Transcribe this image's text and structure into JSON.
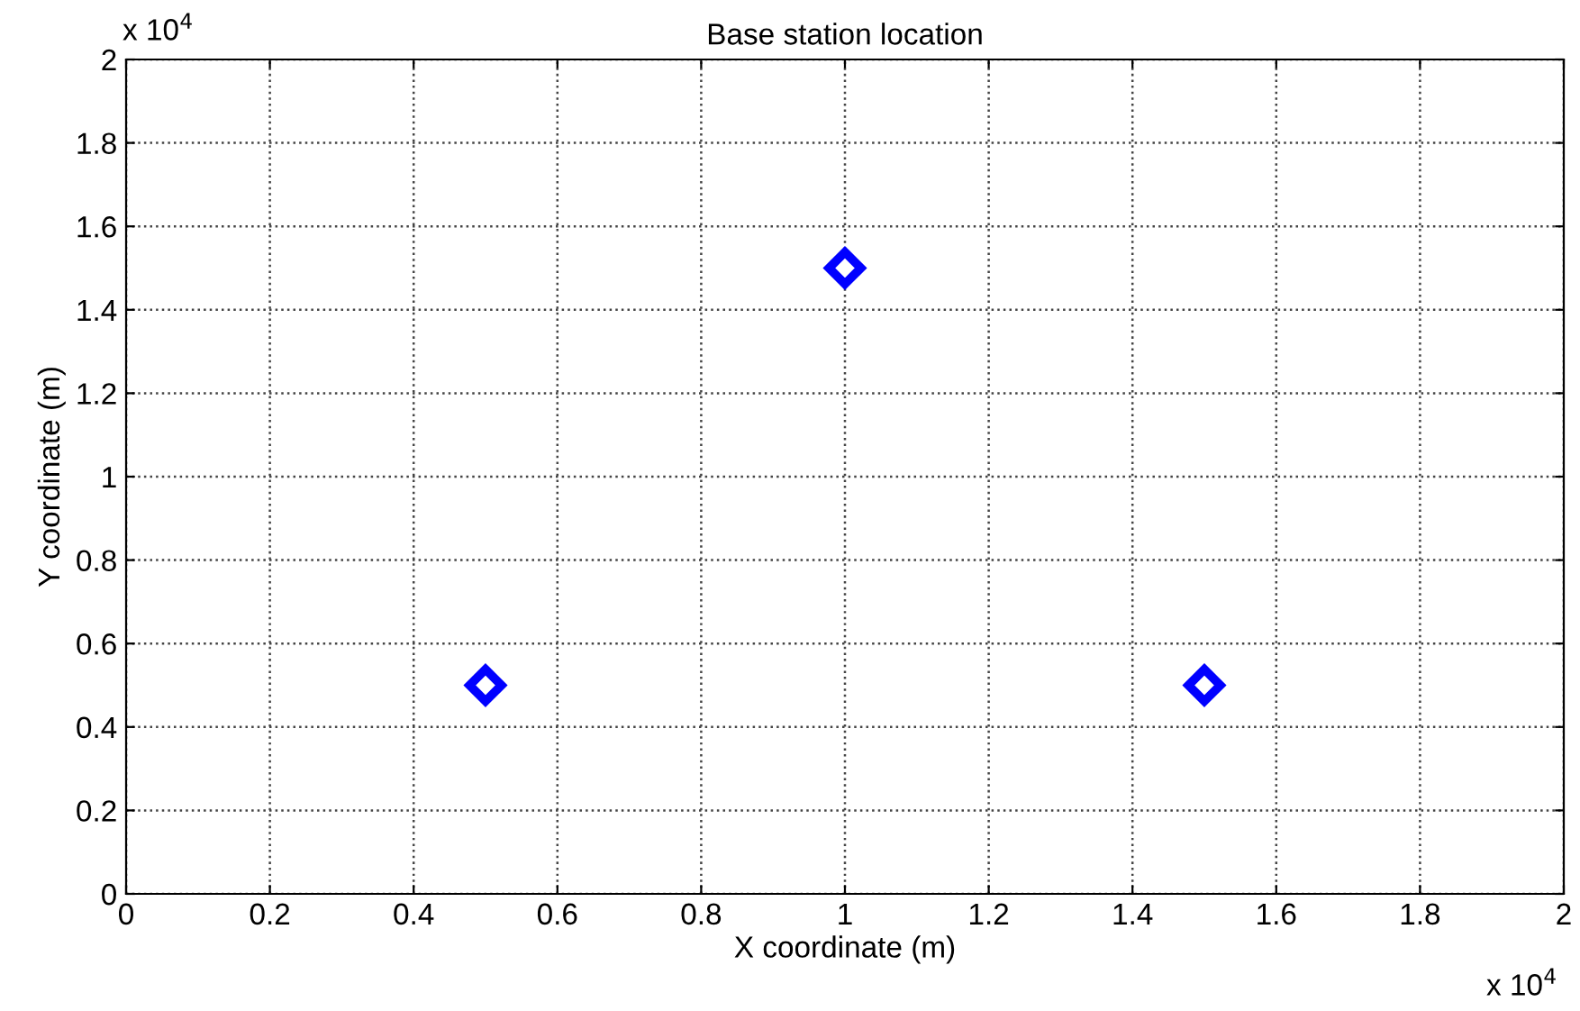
{
  "chart_data": {
    "type": "scatter",
    "title": "Base station location",
    "xlabel": "X coordinate (m)",
    "ylabel": "Y coordinate (m)",
    "x": [
      0.5,
      1,
      1.5
    ],
    "series": [
      {
        "color": "#0000ff",
        "values": [
          0.5,
          1.5,
          0.5
        ]
      }
    ],
    "marker": "diamond",
    "grid": true,
    "line_style": "dotted",
    "xlim": [
      0,
      2
    ],
    "ylim": [
      0,
      2
    ],
    "xticks": [
      0,
      0.2,
      0.4,
      0.6,
      0.8,
      1,
      1.2,
      1.4,
      1.6,
      1.8,
      2
    ],
    "yticks": [
      0,
      0.2,
      0.4,
      0.6,
      0.8,
      1,
      1.2,
      1.4,
      1.6,
      1.8,
      2
    ],
    "annotations": [
      "x 10$^{4}$",
      "x 10$^{4}$"
    ]
  }
}
